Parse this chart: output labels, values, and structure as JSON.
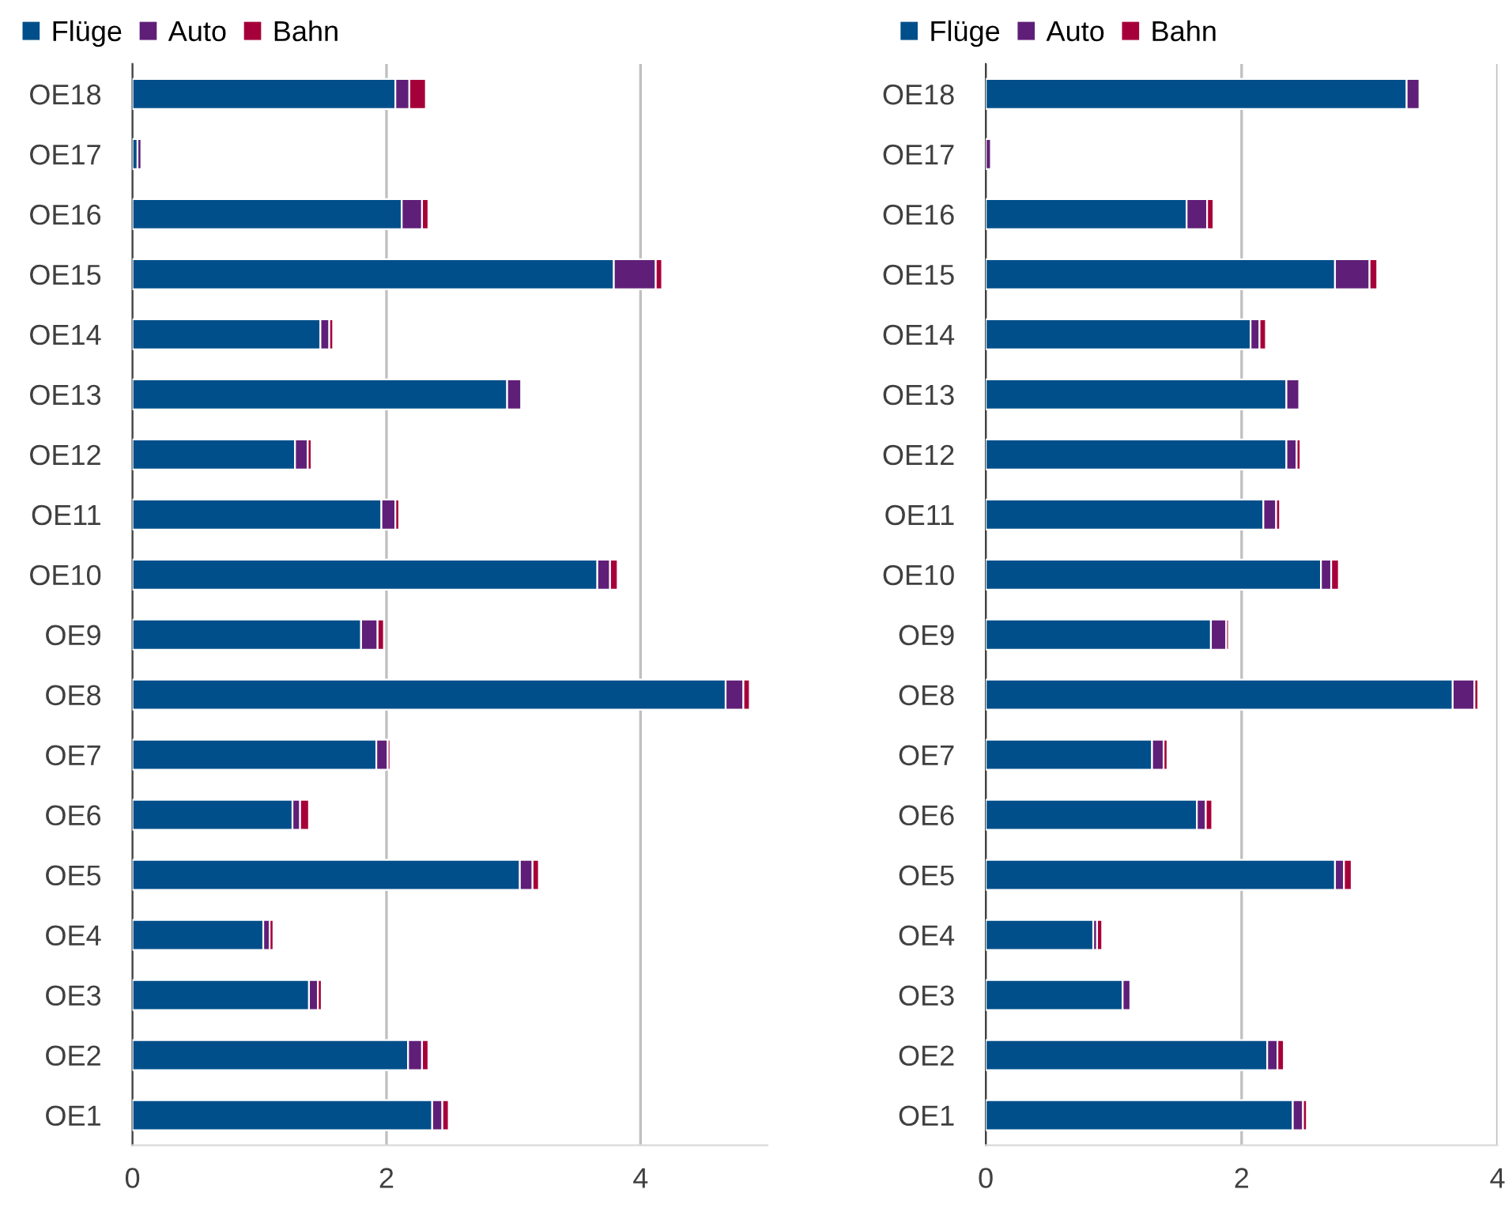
{
  "chart_data": [
    {
      "type": "bar",
      "orientation": "horizontal",
      "stacked": true,
      "categories": [
        "OE18",
        "OE17",
        "OE16",
        "OE15",
        "OE14",
        "OE13",
        "OE12",
        "OE11",
        "OE10",
        "OE9",
        "OE8",
        "OE7",
        "OE6",
        "OE5",
        "OE4",
        "OE3",
        "OE2",
        "OE1"
      ],
      "series": [
        {
          "name": "Flüge",
          "color": "#004f8a",
          "values": [
            2.07,
            0.04,
            2.12,
            3.79,
            1.48,
            2.95,
            1.28,
            1.96,
            3.66,
            1.8,
            4.67,
            1.92,
            1.26,
            3.05,
            1.03,
            1.39,
            2.17,
            2.36
          ]
        },
        {
          "name": "Auto",
          "color": "#5f1f78",
          "values": [
            0.11,
            0.03,
            0.16,
            0.33,
            0.07,
            0.11,
            0.1,
            0.11,
            0.1,
            0.13,
            0.14,
            0.09,
            0.06,
            0.1,
            0.05,
            0.07,
            0.11,
            0.08
          ]
        },
        {
          "name": "Bahn",
          "color": "#a6003a",
          "values": [
            0.13,
            null,
            0.05,
            0.05,
            0.03,
            null,
            0.03,
            0.03,
            0.06,
            0.05,
            0.05,
            0.02,
            0.07,
            0.05,
            0.03,
            0.03,
            0.05,
            0.05
          ]
        }
      ],
      "xlim": [
        0,
        5
      ],
      "xticks": [
        0,
        2,
        4
      ],
      "grid": "x",
      "legend": "top left"
    },
    {
      "type": "bar",
      "orientation": "horizontal",
      "stacked": true,
      "categories": [
        "OE18",
        "OE17",
        "OE16",
        "OE15",
        "OE14",
        "OE13",
        "OE12",
        "OE11",
        "OE10",
        "OE9",
        "OE8",
        "OE7",
        "OE6",
        "OE5",
        "OE4",
        "OE3",
        "OE2",
        "OE1"
      ],
      "series": [
        {
          "name": "Flüge",
          "color": "#004f8a",
          "values": [
            3.29,
            null,
            1.57,
            2.73,
            2.07,
            2.35,
            2.35,
            2.17,
            2.62,
            1.76,
            3.65,
            1.3,
            1.65,
            2.73,
            0.84,
            1.07,
            2.2,
            2.4
          ]
        },
        {
          "name": "Auto",
          "color": "#5f1f78",
          "values": [
            0.1,
            0.04,
            0.16,
            0.27,
            0.07,
            0.1,
            0.08,
            0.1,
            0.08,
            0.12,
            0.17,
            0.09,
            0.07,
            0.07,
            0.03,
            0.06,
            0.08,
            0.08
          ]
        },
        {
          "name": "Bahn",
          "color": "#a6003a",
          "values": [
            null,
            null,
            0.05,
            0.06,
            0.05,
            null,
            0.03,
            0.03,
            0.06,
            0.02,
            0.03,
            0.03,
            0.05,
            0.06,
            0.04,
            null,
            0.05,
            0.03
          ]
        }
      ],
      "xlim": [
        0,
        4
      ],
      "xticks": [
        0,
        2,
        4
      ],
      "grid": "x",
      "legend": "top left"
    }
  ]
}
